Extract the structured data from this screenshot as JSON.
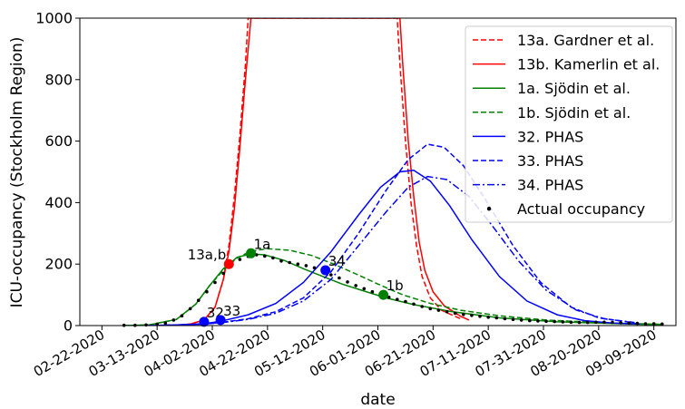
{
  "chart_data": {
    "type": "line",
    "xlabel": "date",
    "ylabel": "ICU-occupancy (Stockholm Region)",
    "ylim": [
      0,
      1000
    ],
    "yticks": [
      0,
      200,
      400,
      600,
      800,
      1000
    ],
    "xlim": [
      "2020-02-14",
      "2020-09-17"
    ],
    "xticks": [
      "2020-02-22",
      "2020-03-13",
      "2020-04-02",
      "2020-04-22",
      "2020-05-12",
      "2020-06-01",
      "2020-06-21",
      "2020-07-11",
      "2020-07-31",
      "2020-08-20",
      "2020-09-09"
    ],
    "xtick_labels": [
      "02-22-2020",
      "03-13-2020",
      "04-02-2020",
      "04-22-2020",
      "05-12-2020",
      "06-01-2020",
      "06-21-2020",
      "07-11-2020",
      "07-31-2020",
      "08-20-2020",
      "09-09-2020"
    ],
    "legend_position": "top-right",
    "grid": false,
    "series": [
      {
        "name": "13a. Gardner et al.",
        "color": "#ff0000",
        "dash": "dashed",
        "points": [
          [
            "2020-03-20",
            0
          ],
          [
            "2020-03-25",
            5
          ],
          [
            "2020-03-30",
            18
          ],
          [
            "2020-04-03",
            60
          ],
          [
            "2020-04-06",
            150
          ],
          [
            "2020-04-08",
            260
          ],
          [
            "2020-04-10",
            420
          ],
          [
            "2020-04-12",
            620
          ],
          [
            "2020-04-14",
            850
          ],
          [
            "2020-04-15",
            1000
          ],
          [
            "2020-06-08",
            1000
          ],
          [
            "2020-06-09",
            850
          ],
          [
            "2020-06-11",
            600
          ],
          [
            "2020-06-13",
            400
          ],
          [
            "2020-06-15",
            260
          ],
          [
            "2020-06-17",
            160
          ],
          [
            "2020-06-20",
            90
          ],
          [
            "2020-06-24",
            50
          ],
          [
            "2020-07-01",
            22
          ]
        ]
      },
      {
        "name": "13b. Kamerlin et al.",
        "color": "#ff0000",
        "dash": "solid",
        "points": [
          [
            "2020-03-20",
            0
          ],
          [
            "2020-03-25",
            5
          ],
          [
            "2020-03-30",
            18
          ],
          [
            "2020-04-03",
            60
          ],
          [
            "2020-04-06",
            150
          ],
          [
            "2020-04-08",
            240
          ],
          [
            "2020-04-10",
            380
          ],
          [
            "2020-04-12",
            580
          ],
          [
            "2020-04-14",
            800
          ],
          [
            "2020-04-16",
            1000
          ],
          [
            "2020-06-09",
            1000
          ],
          [
            "2020-06-10",
            850
          ],
          [
            "2020-06-12",
            600
          ],
          [
            "2020-06-14",
            420
          ],
          [
            "2020-06-16",
            270
          ],
          [
            "2020-06-18",
            180
          ],
          [
            "2020-06-21",
            110
          ],
          [
            "2020-06-25",
            65
          ],
          [
            "2020-07-01",
            30
          ],
          [
            "2020-07-04",
            18
          ]
        ]
      },
      {
        "name": "1a. Sjödin et al.",
        "color": "#008000",
        "dash": "solid",
        "points": [
          [
            "2020-03-01",
            0
          ],
          [
            "2020-03-10",
            2
          ],
          [
            "2020-03-20",
            20
          ],
          [
            "2020-03-27",
            70
          ],
          [
            "2020-04-01",
            130
          ],
          [
            "2020-04-06",
            185
          ],
          [
            "2020-04-11",
            222
          ],
          [
            "2020-04-16",
            233
          ],
          [
            "2020-04-21",
            230
          ],
          [
            "2020-04-28",
            212
          ],
          [
            "2020-05-05",
            185
          ],
          [
            "2020-05-12",
            160
          ],
          [
            "2020-05-19",
            135
          ],
          [
            "2020-05-26",
            115
          ],
          [
            "2020-06-04",
            90
          ],
          [
            "2020-06-14",
            68
          ],
          [
            "2020-06-28",
            45
          ],
          [
            "2020-07-15",
            25
          ],
          [
            "2020-08-05",
            12
          ],
          [
            "2020-08-31",
            5
          ],
          [
            "2020-09-12",
            3
          ]
        ]
      },
      {
        "name": "1b. Sjödin et al.",
        "color": "#008000",
        "dash": "dashed",
        "points": [
          [
            "2020-03-01",
            0
          ],
          [
            "2020-03-10",
            2
          ],
          [
            "2020-03-20",
            20
          ],
          [
            "2020-03-27",
            70
          ],
          [
            "2020-04-01",
            130
          ],
          [
            "2020-04-06",
            180
          ],
          [
            "2020-04-11",
            220
          ],
          [
            "2020-04-16",
            242
          ],
          [
            "2020-04-22",
            250
          ],
          [
            "2020-04-30",
            245
          ],
          [
            "2020-05-08",
            228
          ],
          [
            "2020-05-16",
            200
          ],
          [
            "2020-05-24",
            168
          ],
          [
            "2020-06-01",
            135
          ],
          [
            "2020-06-10",
            100
          ],
          [
            "2020-06-20",
            72
          ],
          [
            "2020-07-01",
            50
          ],
          [
            "2020-07-15",
            32
          ],
          [
            "2020-08-01",
            18
          ],
          [
            "2020-08-25",
            8
          ],
          [
            "2020-09-12",
            4
          ]
        ]
      },
      {
        "name": "32. PHAS",
        "color": "#0000ff",
        "dash": "solid",
        "points": [
          [
            "2020-03-10",
            0
          ],
          [
            "2020-03-20",
            2
          ],
          [
            "2020-03-30",
            6
          ],
          [
            "2020-04-05",
            14
          ],
          [
            "2020-04-15",
            35
          ],
          [
            "2020-04-25",
            72
          ],
          [
            "2020-05-05",
            140
          ],
          [
            "2020-05-15",
            240
          ],
          [
            "2020-05-25",
            360
          ],
          [
            "2020-06-02",
            450
          ],
          [
            "2020-06-09",
            500
          ],
          [
            "2020-06-14",
            505
          ],
          [
            "2020-06-20",
            470
          ],
          [
            "2020-06-27",
            390
          ],
          [
            "2020-07-05",
            280
          ],
          [
            "2020-07-15",
            160
          ],
          [
            "2020-07-25",
            80
          ],
          [
            "2020-08-05",
            35
          ],
          [
            "2020-08-15",
            16
          ],
          [
            "2020-08-25",
            8
          ],
          [
            "2020-09-04",
            5
          ]
        ]
      },
      {
        "name": "33. PHAS",
        "color": "#0000ff",
        "dash": "dashed",
        "points": [
          [
            "2020-03-10",
            0
          ],
          [
            "2020-03-20",
            2
          ],
          [
            "2020-03-30",
            5
          ],
          [
            "2020-04-05",
            10
          ],
          [
            "2020-04-15",
            22
          ],
          [
            "2020-04-25",
            45
          ],
          [
            "2020-05-05",
            90
          ],
          [
            "2020-05-15",
            175
          ],
          [
            "2020-05-25",
            300
          ],
          [
            "2020-06-04",
            440
          ],
          [
            "2020-06-12",
            540
          ],
          [
            "2020-06-19",
            590
          ],
          [
            "2020-06-25",
            580
          ],
          [
            "2020-07-02",
            520
          ],
          [
            "2020-07-10",
            410
          ],
          [
            "2020-07-20",
            260
          ],
          [
            "2020-07-30",
            140
          ],
          [
            "2020-08-10",
            60
          ],
          [
            "2020-08-20",
            25
          ],
          [
            "2020-09-01",
            10
          ]
        ]
      },
      {
        "name": "34. PHAS",
        "color": "#0000ff",
        "dash": "dashdot",
        "points": [
          [
            "2020-03-10",
            0
          ],
          [
            "2020-03-20",
            2
          ],
          [
            "2020-03-30",
            5
          ],
          [
            "2020-04-05",
            9
          ],
          [
            "2020-04-15",
            20
          ],
          [
            "2020-04-25",
            40
          ],
          [
            "2020-05-05",
            80
          ],
          [
            "2020-05-15",
            150
          ],
          [
            "2020-05-25",
            260
          ],
          [
            "2020-06-04",
            370
          ],
          [
            "2020-06-12",
            450
          ],
          [
            "2020-06-19",
            485
          ],
          [
            "2020-06-26",
            475
          ],
          [
            "2020-07-04",
            420
          ],
          [
            "2020-07-12",
            330
          ],
          [
            "2020-07-22",
            210
          ],
          [
            "2020-08-01",
            115
          ],
          [
            "2020-08-12",
            50
          ],
          [
            "2020-08-22",
            22
          ],
          [
            "2020-09-02",
            10
          ]
        ]
      },
      {
        "name": "Actual occupancy",
        "color": "#000000",
        "type": "scatter",
        "points": [
          [
            "2020-03-01",
            1
          ],
          [
            "2020-03-05",
            1
          ],
          [
            "2020-03-09",
            2
          ],
          [
            "2020-03-13",
            4
          ],
          [
            "2020-03-16",
            8
          ],
          [
            "2020-03-19",
            18
          ],
          [
            "2020-03-22",
            32
          ],
          [
            "2020-03-25",
            55
          ],
          [
            "2020-03-28",
            82
          ],
          [
            "2020-03-31",
            110
          ],
          [
            "2020-04-03",
            140
          ],
          [
            "2020-04-06",
            170
          ],
          [
            "2020-04-09",
            195
          ],
          [
            "2020-04-12",
            215
          ],
          [
            "2020-04-15",
            225
          ],
          [
            "2020-04-18",
            230
          ],
          [
            "2020-04-21",
            226
          ],
          [
            "2020-04-24",
            220
          ],
          [
            "2020-04-27",
            210
          ],
          [
            "2020-04-30",
            205
          ],
          [
            "2020-05-03",
            200
          ],
          [
            "2020-05-06",
            195
          ],
          [
            "2020-05-09",
            188
          ],
          [
            "2020-05-12",
            175
          ],
          [
            "2020-05-15",
            165
          ],
          [
            "2020-05-18",
            155
          ],
          [
            "2020-05-21",
            142
          ],
          [
            "2020-05-24",
            130
          ],
          [
            "2020-05-27",
            120
          ],
          [
            "2020-05-30",
            110
          ],
          [
            "2020-06-02",
            100
          ],
          [
            "2020-06-05",
            92
          ],
          [
            "2020-06-08",
            85
          ],
          [
            "2020-06-11",
            78
          ],
          [
            "2020-06-14",
            70
          ],
          [
            "2020-06-17",
            62
          ],
          [
            "2020-06-20",
            55
          ],
          [
            "2020-06-23",
            50
          ],
          [
            "2020-06-26",
            45
          ],
          [
            "2020-06-29",
            40
          ],
          [
            "2020-07-02",
            36
          ],
          [
            "2020-07-05",
            33
          ],
          [
            "2020-07-08",
            30
          ],
          [
            "2020-07-11",
            27
          ],
          [
            "2020-07-14",
            25
          ],
          [
            "2020-07-17",
            22
          ],
          [
            "2020-07-20",
            20
          ],
          [
            "2020-07-23",
            18
          ],
          [
            "2020-07-26",
            16
          ],
          [
            "2020-07-29",
            15
          ],
          [
            "2020-08-01",
            14
          ],
          [
            "2020-08-04",
            13
          ],
          [
            "2020-08-07",
            12
          ],
          [
            "2020-08-10",
            11
          ],
          [
            "2020-08-13",
            10
          ],
          [
            "2020-08-16",
            10
          ],
          [
            "2020-08-19",
            11
          ],
          [
            "2020-08-22",
            11
          ],
          [
            "2020-08-25",
            10
          ],
          [
            "2020-08-28",
            9
          ],
          [
            "2020-08-31",
            8
          ],
          [
            "2020-09-03",
            7
          ],
          [
            "2020-09-06",
            6
          ],
          [
            "2020-09-09",
            6
          ],
          [
            "2020-09-12",
            5
          ]
        ]
      }
    ],
    "markers": [
      {
        "label": "13a,b",
        "date": "2020-04-08",
        "value": 200,
        "color": "#ff0000",
        "label_side": "left"
      },
      {
        "label": "1a",
        "date": "2020-04-16",
        "value": 235,
        "color": "#008000",
        "label_side": "right"
      },
      {
        "label": "1b",
        "date": "2020-06-03",
        "value": 100,
        "color": "#008000",
        "label_side": "right"
      },
      {
        "label": "32",
        "date": "2020-03-30",
        "value": 12,
        "color": "#0000ff",
        "label_side": "right"
      },
      {
        "label": "33",
        "date": "2020-04-05",
        "value": 18,
        "color": "#0000ff",
        "label_side": "right"
      },
      {
        "label": "34",
        "date": "2020-05-13",
        "value": 180,
        "color": "#0000ff",
        "label_side": "right"
      }
    ]
  }
}
